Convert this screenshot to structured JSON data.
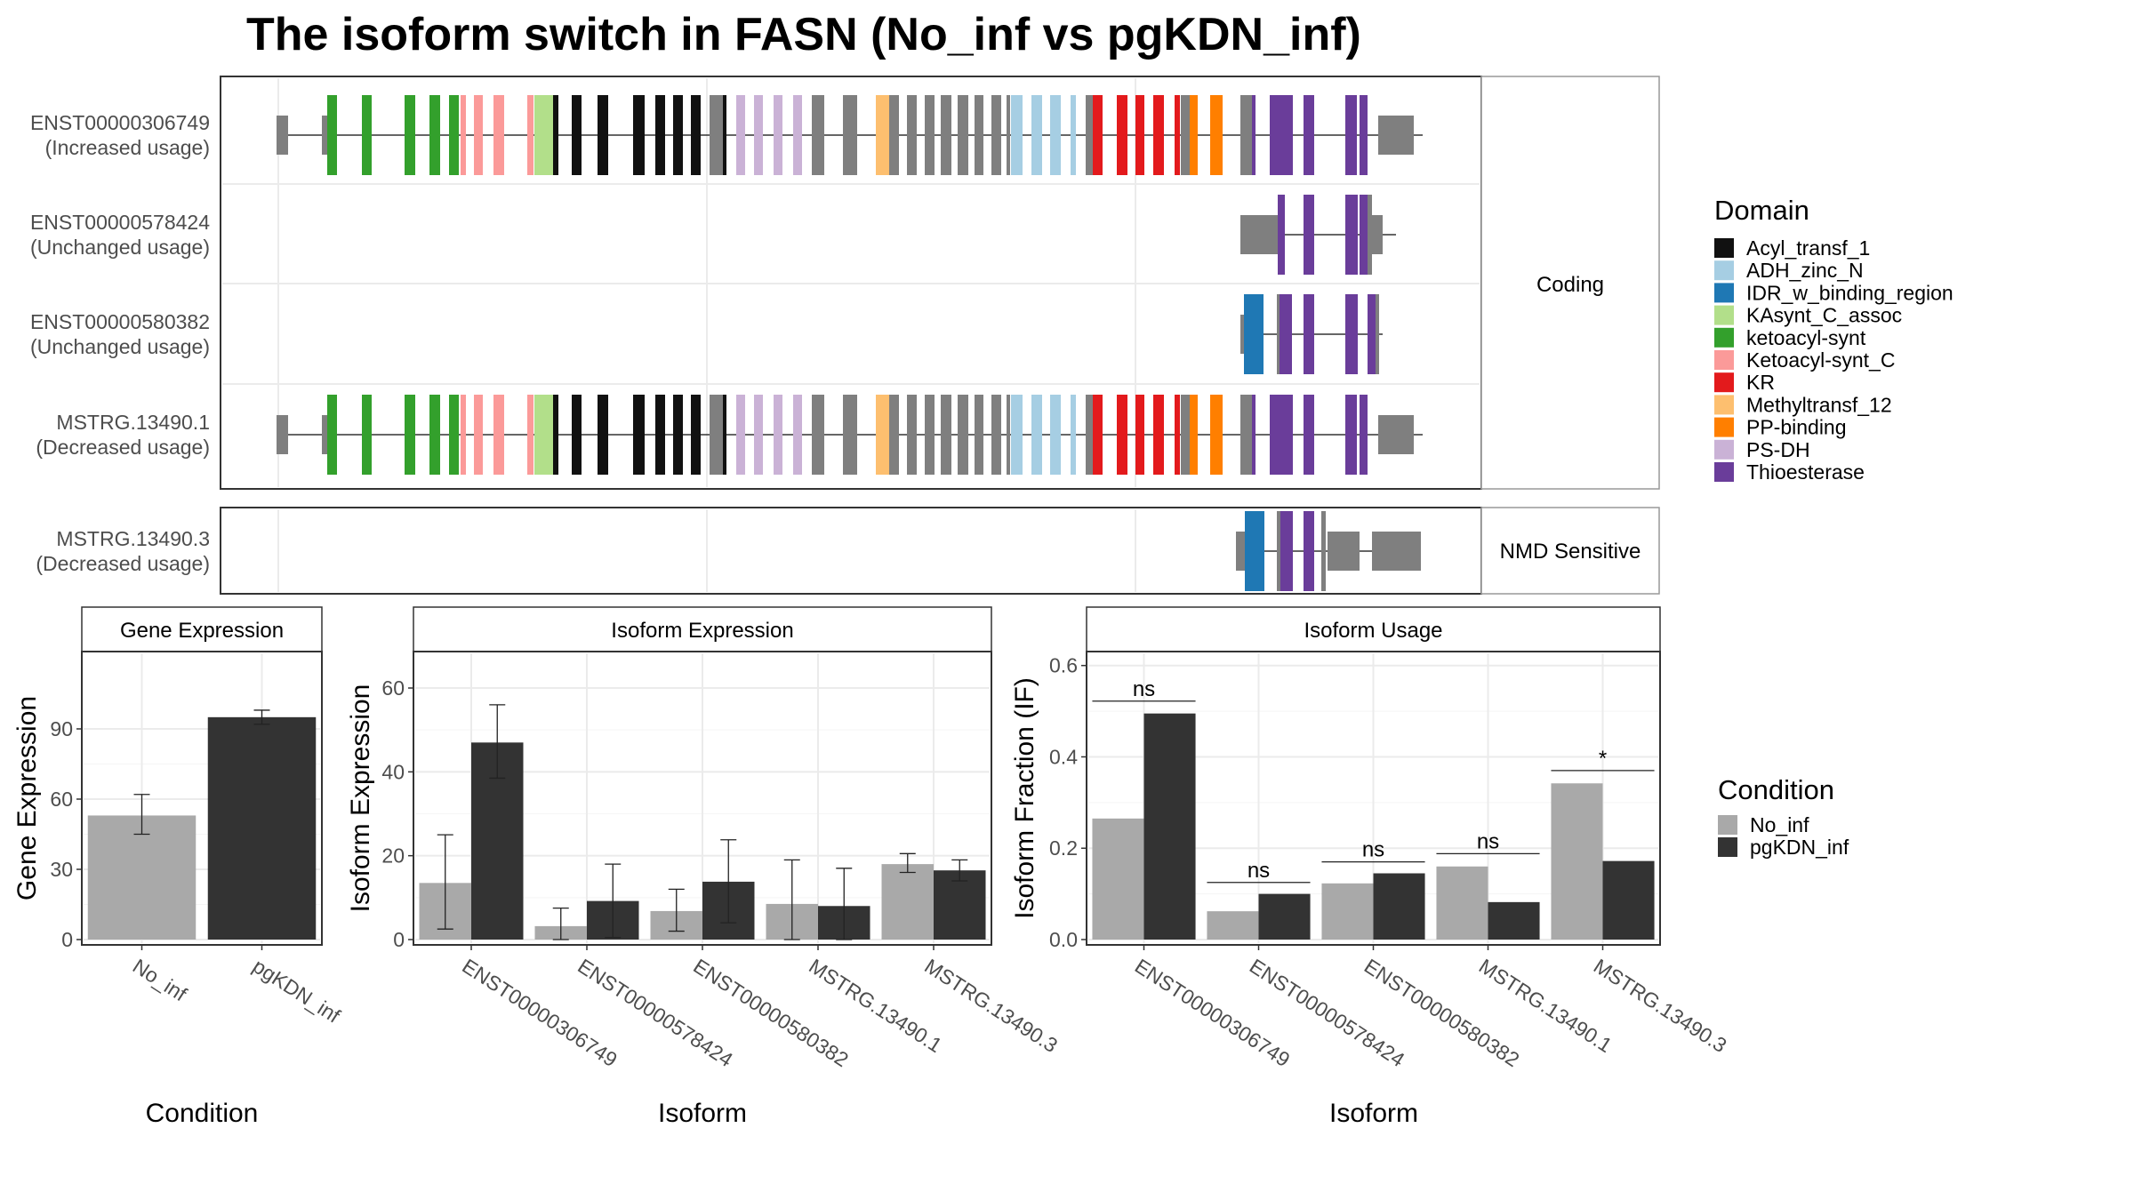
{
  "title": "The isoform switch in FASN (No_inf vs pgKDN_inf)",
  "colors": {
    "no_inf": "#A9A9A9",
    "pgkdn_inf": "#333333",
    "grey_region": "#7F7F7F",
    "intron_line": "#333333",
    "strip_bg": "#FFFFFF",
    "panel_border": "#333333",
    "grid": "#EBEBEB"
  },
  "structure": {
    "facets": [
      "Coding",
      "NMD Sensitive"
    ],
    "isoforms": [
      {
        "id": "ENST00000306749",
        "usage": "(Increased usage)",
        "facet": "Coding"
      },
      {
        "id": "ENST00000578424",
        "usage": "(Unchanged usage)",
        "facet": "Coding"
      },
      {
        "id": "ENST00000580382",
        "usage": "(Unchanged usage)",
        "facet": "Coding"
      },
      {
        "id": "MSTRG.13490.1",
        "usage": "(Decreased usage)",
        "facet": "Coding"
      },
      {
        "id": "MSTRG.13490.3",
        "usage": "(Decreased usage)",
        "facet": "NMD Sensitive"
      }
    ]
  },
  "legend_domain": {
    "title": "Domain",
    "items": [
      {
        "label": "Acyl_transf_1",
        "color": "#111111"
      },
      {
        "label": "ADH_zinc_N",
        "color": "#A6CEE3"
      },
      {
        "label": "IDR_w_binding_region",
        "color": "#1F78B4"
      },
      {
        "label": "KAsynt_C_assoc",
        "color": "#B2DF8A"
      },
      {
        "label": "ketoacyl-synt",
        "color": "#33A02C"
      },
      {
        "label": "Ketoacyl-synt_C",
        "color": "#FB9A99"
      },
      {
        "label": "KR",
        "color": "#E31A1C"
      },
      {
        "label": "Methyltransf_12",
        "color": "#FDBF6F"
      },
      {
        "label": "PP-binding",
        "color": "#FF7F00"
      },
      {
        "label": "PS-DH",
        "color": "#CAB2D6"
      },
      {
        "label": "Thioesterase",
        "color": "#6A3D9A"
      }
    ]
  },
  "legend_condition": {
    "title": "Condition",
    "items": [
      {
        "label": "No_inf",
        "color": "#A9A9A9"
      },
      {
        "label": "pgKDN_inf",
        "color": "#333333"
      }
    ]
  },
  "chart_data": [
    {
      "type": "bar",
      "title": "Gene Expression",
      "xlabel": "Condition",
      "ylabel": "Gene Expression",
      "ylim": [
        0,
        120
      ],
      "yticks": [
        0,
        30,
        60,
        90
      ],
      "categories": [
        "No_inf",
        "pgKDN_inf"
      ],
      "values": [
        53,
        95
      ],
      "error_low": [
        45,
        92
      ],
      "error_high": [
        62,
        98
      ],
      "grid": true
    },
    {
      "type": "bar",
      "title": "Isoform Expression",
      "xlabel": "Isoform",
      "ylabel": "Isoform Expression",
      "ylim": [
        0,
        67
      ],
      "yticks": [
        0,
        20,
        40,
        60
      ],
      "categories": [
        "ENST00000306749",
        "ENST00000578424",
        "ENST00000580382",
        "MSTRG.13490.1",
        "MSTRG.13490.3"
      ],
      "series": [
        {
          "name": "No_inf",
          "values": [
            13.5,
            3.2,
            6.8,
            8.5,
            18
          ],
          "error_low": [
            2.5,
            0,
            2,
            0,
            16
          ],
          "error_high": [
            25,
            7.5,
            12,
            19,
            20.5
          ]
        },
        {
          "name": "pgKDN_inf",
          "values": [
            47,
            9.2,
            13.8,
            8,
            16.5
          ],
          "error_low": [
            38.5,
            0.5,
            4,
            0,
            14
          ],
          "error_high": [
            56,
            18,
            23.8,
            17,
            19
          ]
        }
      ],
      "grid": true
    },
    {
      "type": "bar",
      "title": "Isoform Usage",
      "xlabel": "Isoform",
      "ylabel": "Isoform Fraction (IF)",
      "ylim": [
        0,
        0.615
      ],
      "yticks": [
        "0.0",
        "0.2",
        "0.4",
        "0.6"
      ],
      "categories": [
        "ENST00000306749",
        "ENST00000578424",
        "ENST00000580382",
        "MSTRG.13490.1",
        "MSTRG.13490.3"
      ],
      "series": [
        {
          "name": "No_inf",
          "values": [
            0.265,
            0.062,
            0.123,
            0.16,
            0.342
          ]
        },
        {
          "name": "pgKDN_inf",
          "values": [
            0.495,
            0.1,
            0.145,
            0.082,
            0.172
          ]
        }
      ],
      "significance": [
        "ns",
        "ns",
        "ns",
        "ns",
        "*"
      ],
      "significance_y": [
        0.522,
        0.125,
        0.17,
        0.188,
        0.37
      ],
      "grid": true
    }
  ]
}
